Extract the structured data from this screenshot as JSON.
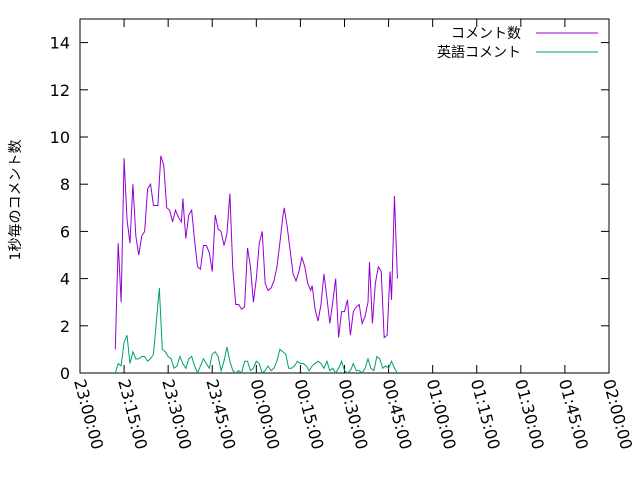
{
  "chart_data": {
    "type": "line",
    "ylabel": "1秒毎のコメント数",
    "xlabel": "",
    "ylim": [
      0,
      15
    ],
    "yticks": [
      0,
      2,
      4,
      6,
      8,
      10,
      12,
      14
    ],
    "xlim_minutes": [
      -60,
      120
    ],
    "xtick_labels": [
      "23:00:00",
      "23:15:00",
      "23:30:00",
      "23:45:00",
      "00:00:00",
      "00:15:00",
      "00:30:00",
      "00:45:00",
      "01:00:00",
      "01:15:00",
      "01:30:00",
      "01:45:00",
      "02:00:00"
    ],
    "grid": false,
    "legend_position": "top-right",
    "series": [
      {
        "name": "コメント数",
        "color": "#9400d3",
        "points": [
          [
            -48.0,
            1.0
          ],
          [
            -47.0,
            5.5
          ],
          [
            -46.0,
            3.0
          ],
          [
            -45.0,
            9.1
          ],
          [
            -44.0,
            6.5
          ],
          [
            -43.0,
            5.5
          ],
          [
            -42.0,
            8.0
          ],
          [
            -41.0,
            5.8
          ],
          [
            -40.0,
            5.0
          ],
          [
            -39.0,
            5.8
          ],
          [
            -38.0,
            6.0
          ],
          [
            -37.0,
            7.8
          ],
          [
            -36.0,
            8.0
          ],
          [
            -35.0,
            7.1
          ],
          [
            -33.5,
            7.1
          ],
          [
            -32.5,
            9.2
          ],
          [
            -31.5,
            8.8
          ],
          [
            -30.5,
            7.0
          ],
          [
            -29.5,
            6.9
          ],
          [
            -28.5,
            6.4
          ],
          [
            -27.5,
            6.9
          ],
          [
            -26.5,
            6.6
          ],
          [
            -25.5,
            6.4
          ],
          [
            -25.0,
            7.4
          ],
          [
            -24.0,
            5.7
          ],
          [
            -23.0,
            6.7
          ],
          [
            -22.0,
            6.9
          ],
          [
            -21.0,
            5.6
          ],
          [
            -20.0,
            4.5
          ],
          [
            -19.0,
            4.4
          ],
          [
            -18.0,
            5.4
          ],
          [
            -17.0,
            5.4
          ],
          [
            -16.0,
            5.1
          ],
          [
            -15.0,
            4.3
          ],
          [
            -14.0,
            6.7
          ],
          [
            -13.0,
            6.1
          ],
          [
            -12.0,
            6.0
          ],
          [
            -11.0,
            5.4
          ],
          [
            -10.0,
            5.9
          ],
          [
            -9.0,
            7.6
          ],
          [
            -8.0,
            4.4
          ],
          [
            -7.0,
            2.9
          ],
          [
            -6.0,
            2.9
          ],
          [
            -5.0,
            2.7
          ],
          [
            -4.0,
            2.8
          ],
          [
            -3.0,
            5.3
          ],
          [
            -2.0,
            4.5
          ],
          [
            -1.0,
            3.0
          ],
          [
            0.0,
            4.0
          ],
          [
            1.0,
            5.5
          ],
          [
            2.0,
            6.0
          ],
          [
            3.0,
            3.8
          ],
          [
            4.0,
            3.5
          ],
          [
            5.0,
            3.6
          ],
          [
            6.0,
            3.9
          ],
          [
            7.0,
            4.5
          ],
          [
            8.0,
            5.5
          ],
          [
            9.0,
            6.6
          ],
          [
            9.5,
            7.0
          ],
          [
            10.5,
            6.2
          ],
          [
            11.5,
            5.2
          ],
          [
            12.5,
            4.2
          ],
          [
            13.5,
            3.9
          ],
          [
            14.5,
            4.3
          ],
          [
            15.5,
            4.9
          ],
          [
            16.5,
            4.5
          ],
          [
            17.5,
            3.8
          ],
          [
            18.5,
            3.5
          ],
          [
            19.0,
            3.7
          ],
          [
            20.0,
            2.7
          ],
          [
            21.0,
            2.2
          ],
          [
            22.0,
            2.9
          ],
          [
            23.0,
            4.2
          ],
          [
            24.0,
            3.2
          ],
          [
            25.0,
            2.1
          ],
          [
            26.0,
            3.0
          ],
          [
            27.0,
            4.0
          ],
          [
            28.0,
            1.5
          ],
          [
            29.0,
            2.6
          ],
          [
            30.0,
            2.6
          ],
          [
            31.0,
            3.1
          ],
          [
            32.0,
            1.6
          ],
          [
            33.0,
            2.6
          ],
          [
            34.0,
            2.8
          ],
          [
            35.0,
            2.9
          ],
          [
            36.0,
            2.1
          ],
          [
            37.0,
            2.4
          ],
          [
            38.0,
            3.0
          ],
          [
            38.5,
            4.7
          ],
          [
            39.5,
            2.1
          ],
          [
            40.5,
            3.8
          ],
          [
            41.5,
            4.5
          ],
          [
            42.5,
            4.3
          ],
          [
            43.5,
            1.5
          ],
          [
            44.5,
            1.6
          ],
          [
            45.5,
            4.3
          ],
          [
            46.0,
            3.1
          ],
          [
            47.0,
            7.5
          ],
          [
            48.0,
            4.0
          ]
        ]
      },
      {
        "name": "英語コメント",
        "color": "#009e73",
        "points": [
          [
            -48.0,
            0.0
          ],
          [
            -47.0,
            0.4
          ],
          [
            -46.0,
            0.3
          ],
          [
            -45.0,
            1.3
          ],
          [
            -44.0,
            1.6
          ],
          [
            -43.0,
            0.4
          ],
          [
            -42.0,
            0.9
          ],
          [
            -41.0,
            0.6
          ],
          [
            -40.0,
            0.6
          ],
          [
            -39.0,
            0.7
          ],
          [
            -38.0,
            0.7
          ],
          [
            -37.0,
            0.5
          ],
          [
            -36.0,
            0.6
          ],
          [
            -35.0,
            0.8
          ],
          [
            -34.0,
            2.2
          ],
          [
            -33.0,
            3.6
          ],
          [
            -32.0,
            1.0
          ],
          [
            -31.0,
            0.9
          ],
          [
            -30.0,
            0.7
          ],
          [
            -29.0,
            0.6
          ],
          [
            -28.0,
            0.2
          ],
          [
            -27.0,
            0.3
          ],
          [
            -26.0,
            0.7
          ],
          [
            -25.0,
            0.4
          ],
          [
            -24.0,
            0.2
          ],
          [
            -23.0,
            0.6
          ],
          [
            -22.0,
            0.7
          ],
          [
            -21.0,
            0.3
          ],
          [
            -20.0,
            0.0
          ],
          [
            -19.0,
            0.3
          ],
          [
            -18.0,
            0.6
          ],
          [
            -17.0,
            0.4
          ],
          [
            -16.0,
            0.2
          ],
          [
            -15.0,
            0.8
          ],
          [
            -14.0,
            0.9
          ],
          [
            -13.0,
            0.7
          ],
          [
            -12.0,
            0.1
          ],
          [
            -11.0,
            0.5
          ],
          [
            -10.0,
            1.1
          ],
          [
            -9.0,
            0.5
          ],
          [
            -8.0,
            0.1
          ],
          [
            -7.0,
            0.0
          ],
          [
            -6.0,
            0.1
          ],
          [
            -5.0,
            0.0
          ],
          [
            -4.0,
            0.5
          ],
          [
            -3.0,
            0.5
          ],
          [
            -2.0,
            0.1
          ],
          [
            -1.0,
            0.2
          ],
          [
            0.0,
            0.5
          ],
          [
            1.0,
            0.4
          ],
          [
            2.0,
            0.0
          ],
          [
            3.0,
            0.1
          ],
          [
            4.0,
            0.3
          ],
          [
            5.0,
            0.1
          ],
          [
            6.0,
            0.2
          ],
          [
            7.0,
            0.5
          ],
          [
            8.0,
            1.0
          ],
          [
            9.0,
            0.9
          ],
          [
            10.0,
            0.8
          ],
          [
            11.0,
            0.2
          ],
          [
            12.0,
            0.2
          ],
          [
            13.0,
            0.3
          ],
          [
            14.0,
            0.5
          ],
          [
            15.0,
            0.4
          ],
          [
            16.0,
            0.4
          ],
          [
            17.0,
            0.3
          ],
          [
            18.0,
            0.1
          ],
          [
            19.0,
            0.3
          ],
          [
            20.0,
            0.4
          ],
          [
            21.0,
            0.5
          ],
          [
            22.0,
            0.4
          ],
          [
            23.0,
            0.2
          ],
          [
            24.0,
            0.5
          ],
          [
            25.0,
            0.1
          ],
          [
            26.0,
            0.2
          ],
          [
            27.0,
            0.0
          ],
          [
            28.0,
            0.2
          ],
          [
            29.0,
            0.5
          ],
          [
            30.0,
            0.1
          ],
          [
            31.0,
            0.0
          ],
          [
            32.0,
            0.1
          ],
          [
            33.0,
            0.4
          ],
          [
            34.0,
            0.1
          ],
          [
            35.0,
            0.1
          ],
          [
            36.0,
            0.0
          ],
          [
            37.0,
            0.2
          ],
          [
            38.0,
            0.6
          ],
          [
            39.0,
            0.2
          ],
          [
            40.0,
            0.1
          ],
          [
            41.0,
            0.7
          ],
          [
            42.0,
            0.6
          ],
          [
            43.0,
            0.2
          ],
          [
            44.0,
            0.3
          ],
          [
            45.0,
            0.2
          ],
          [
            46.0,
            0.5
          ],
          [
            47.0,
            0.2
          ],
          [
            48.0,
            0.0
          ]
        ]
      }
    ]
  }
}
